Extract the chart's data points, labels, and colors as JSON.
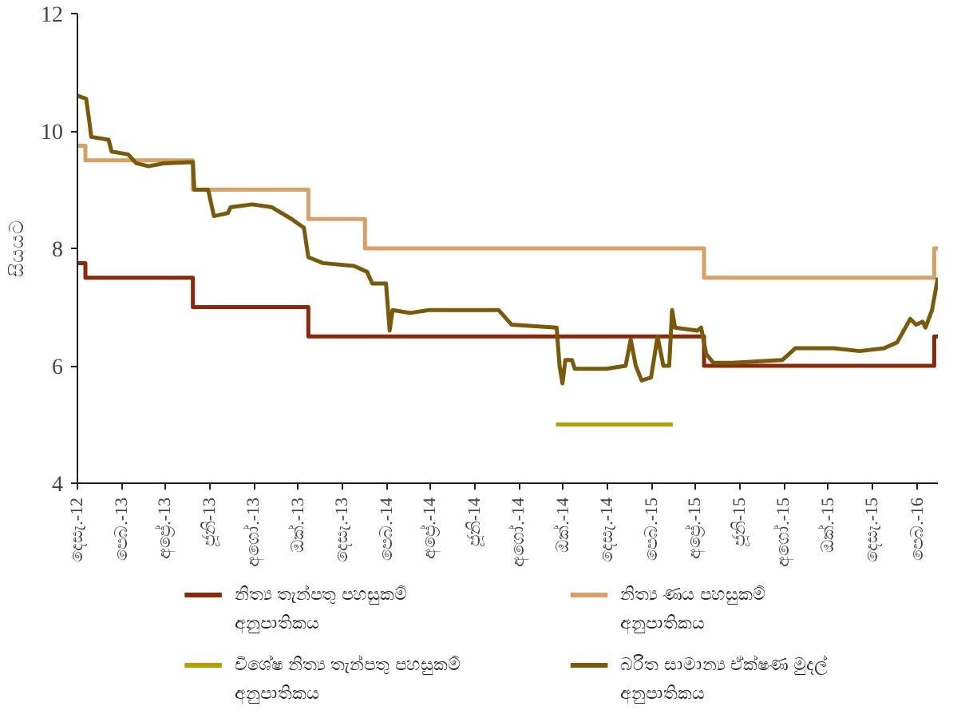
{
  "chart_data": {
    "type": "line",
    "ylabel": "සියයට",
    "xlim": [
      "2012-12-01",
      "2016-02-29"
    ],
    "ylim": [
      4,
      12
    ],
    "yticks": [
      4,
      6,
      8,
      10,
      12
    ],
    "xticks": [
      {
        "value": "2012-12",
        "label": "දෙසැ.-12"
      },
      {
        "value": "2013-02",
        "label": "පෙබ.-13"
      },
      {
        "value": "2013-04",
        "label": "අප්‍රේ.-13"
      },
      {
        "value": "2013-06",
        "label": "ජූනි-13"
      },
      {
        "value": "2013-08",
        "label": "අගෝ.-13"
      },
      {
        "value": "2013-10",
        "label": "ඔක්.-13"
      },
      {
        "value": "2013-12",
        "label": "දෙසැ.-13"
      },
      {
        "value": "2014-02",
        "label": "පෙබ.-14"
      },
      {
        "value": "2014-04",
        "label": "අප්‍රේ.-14"
      },
      {
        "value": "2014-06",
        "label": "ජූනි-14"
      },
      {
        "value": "2014-08",
        "label": "අගෝ.-14"
      },
      {
        "value": "2014-10",
        "label": "ඔක්.-14"
      },
      {
        "value": "2014-12",
        "label": "දෙසැ.-14"
      },
      {
        "value": "2015-02",
        "label": "පෙබ.-15"
      },
      {
        "value": "2015-04",
        "label": "අප්‍රේ.-15"
      },
      {
        "value": "2015-06",
        "label": "ජූනි-15"
      },
      {
        "value": "2015-08",
        "label": "අගෝ.-15"
      },
      {
        "value": "2015-10",
        "label": "ඔක්.-15"
      },
      {
        "value": "2015-12",
        "label": "දෙසැ.-15"
      },
      {
        "value": "2016-02",
        "label": "පෙබ.-16"
      }
    ],
    "legend": "bottom",
    "line_style": "solid",
    "series": [
      {
        "name": "නිත්‍ය තැන්පතු පහසුකම් අනුපාතිකය",
        "type": "step",
        "color": "#8b2a0a",
        "x": [
          "2012-12-01",
          "2012-12-12",
          "2013-05-09",
          "2013-10-15",
          "2015-04-13",
          "2016-02-24",
          "2016-02-29"
        ],
        "values": [
          7.75,
          7.5,
          7.0,
          6.5,
          6.0,
          6.5,
          6.5
        ]
      },
      {
        "name": "නිත්‍ය ණය පහසුකම් අනුපාතිකය",
        "type": "step",
        "color": "#d9a066",
        "x": [
          "2012-12-01",
          "2012-12-12",
          "2013-05-09",
          "2013-10-15",
          "2014-01-01",
          "2015-04-13",
          "2016-02-24",
          "2016-02-29"
        ],
        "values": [
          9.75,
          9.5,
          9.0,
          8.5,
          8.0,
          7.5,
          8.0,
          8.0
        ]
      },
      {
        "name": "විශේෂ නිත්‍ය තැන්පතු පහසුකම් අනුපාතිකය",
        "type": "step",
        "color": "#b5a000",
        "x": [
          "2014-09-21",
          "2015-03-01"
        ],
        "values": [
          5.0,
          5.0
        ]
      },
      {
        "name": "බරිත සාමාන්‍ය ඒක්ෂණ මුදල් අනුපාතිකය",
        "color": "#7a5a0a",
        "x": [
          "2012-12-01",
          "2012-12-13",
          "2012-12-17",
          "2012-12-20",
          "2013-01-13",
          "2013-01-17",
          "2013-02-09",
          "2013-02-20",
          "2013-03-09",
          "2013-03-30",
          "2013-05-09",
          "2013-05-11",
          "2013-05-30",
          "2013-06-07",
          "2013-06-26",
          "2013-06-30",
          "2013-07-30",
          "2013-08-26",
          "2013-09-22",
          "2013-10-09",
          "2013-10-15",
          "2013-11-04",
          "2013-12-17",
          "2014-01-04",
          "2014-01-11",
          "2014-01-30",
          "2014-02-04",
          "2014-02-08",
          "2014-03-04",
          "2014-03-30",
          "2014-07-04",
          "2014-07-22",
          "2014-09-22",
          "2014-09-26",
          "2014-09-30",
          "2014-10-04",
          "2014-10-13",
          "2014-10-17",
          "2014-11-30",
          "2014-12-26",
          "2015-01-02",
          "2015-01-09",
          "2015-01-17",
          "2015-01-30",
          "2015-02-08",
          "2015-02-16",
          "2015-02-24",
          "2015-02-28",
          "2015-03-04",
          "2015-04-04",
          "2015-04-09",
          "2015-04-16",
          "2015-04-26",
          "2015-05-22",
          "2015-07-30",
          "2015-08-17",
          "2015-10-09",
          "2015-11-13",
          "2015-12-17",
          "2016-01-04",
          "2016-01-22",
          "2016-01-30",
          "2016-02-08",
          "2016-02-12",
          "2016-02-21",
          "2016-02-29"
        ],
        "values": [
          10.6,
          10.55,
          10.2,
          9.9,
          9.85,
          9.65,
          9.6,
          9.45,
          9.4,
          9.45,
          9.47,
          9.0,
          9.0,
          8.55,
          8.6,
          8.7,
          8.75,
          8.7,
          8.5,
          8.35,
          7.85,
          7.75,
          7.7,
          7.6,
          7.4,
          7.4,
          6.6,
          6.95,
          6.9,
          6.95,
          6.95,
          6.7,
          6.65,
          6.0,
          5.7,
          6.1,
          6.1,
          5.95,
          5.95,
          6.0,
          6.45,
          6.0,
          5.75,
          5.8,
          6.5,
          6.0,
          6.0,
          6.95,
          6.65,
          6.6,
          6.65,
          6.2,
          6.05,
          6.05,
          6.1,
          6.3,
          6.3,
          6.25,
          6.3,
          6.4,
          6.8,
          6.7,
          6.75,
          6.65,
          6.95,
          7.5
        ]
      }
    ]
  }
}
